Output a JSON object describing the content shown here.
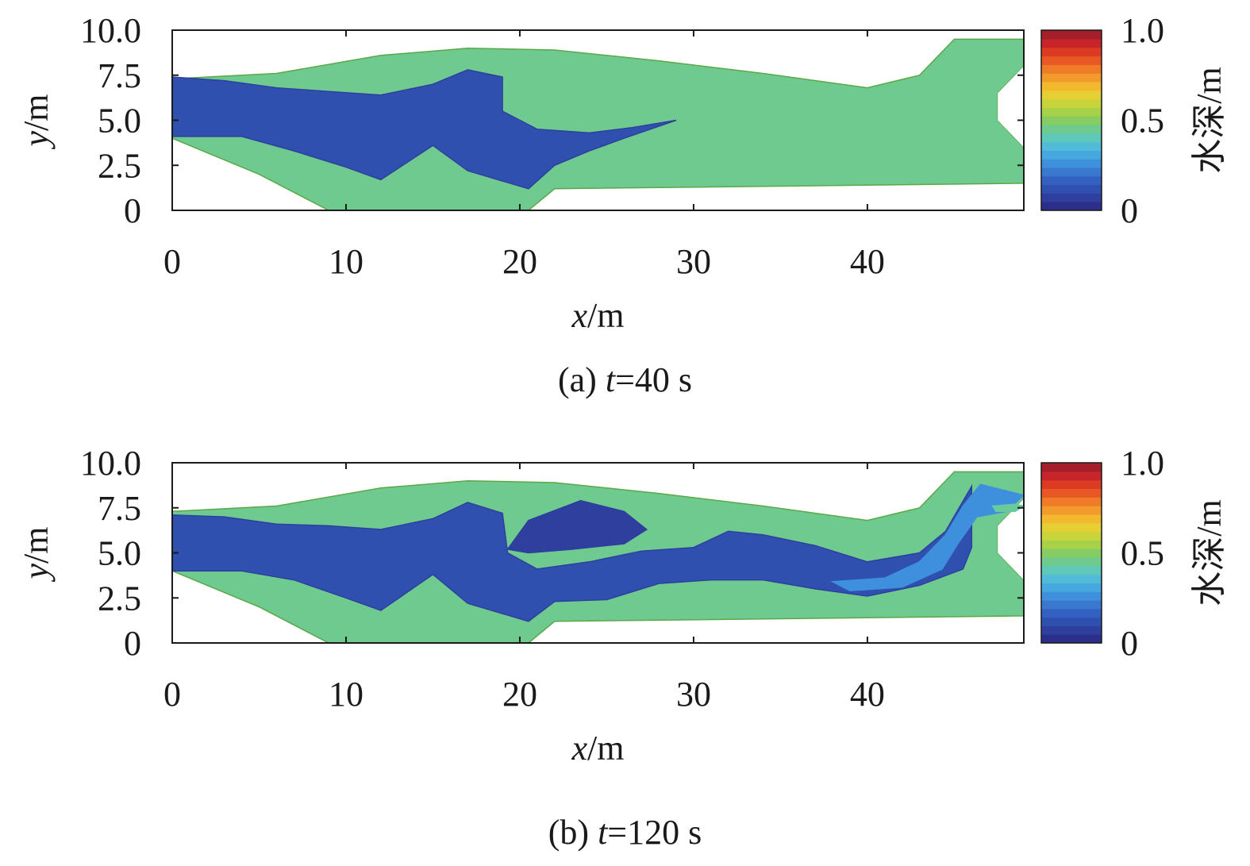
{
  "chart_data": [
    {
      "type": "heatmap",
      "caption": {
        "prefix": "(a) ",
        "var": "t",
        "rest": "=40 s"
      },
      "xlabel": {
        "var": "x",
        "unit": "/m"
      },
      "ylabel": {
        "var": "y",
        "unit": "/m"
      },
      "xlim": [
        0,
        49
      ],
      "ylim": [
        0,
        10
      ],
      "xticks": [
        "0",
        "10",
        "20",
        "30",
        "40"
      ],
      "xtick_values": [
        0,
        10,
        20,
        30,
        40
      ],
      "yticks": [
        "0",
        "2.5",
        "5.0",
        "7.5",
        "10.0"
      ],
      "ytick_values": [
        0,
        2.5,
        5,
        7.5,
        10
      ],
      "colorbar": {
        "label": "水深/m",
        "min": 0,
        "max": 1,
        "ticks": [
          "0",
          "0.5",
          "1.0"
        ],
        "tick_values": [
          0,
          0.5,
          1
        ]
      },
      "domain_depth_m": 0.45,
      "domain_outline": [
        [
          0,
          7.3
        ],
        [
          6,
          7.6
        ],
        [
          12,
          8.6
        ],
        [
          17,
          9.0
        ],
        [
          22,
          8.9
        ],
        [
          28,
          8.3
        ],
        [
          34,
          7.6
        ],
        [
          40,
          6.8
        ],
        [
          43,
          7.5
        ],
        [
          45,
          9.5
        ],
        [
          49,
          9.5
        ],
        [
          49,
          8.0
        ],
        [
          47.5,
          6.5
        ],
        [
          47.5,
          5.0
        ],
        [
          49,
          3.5
        ],
        [
          49,
          1.5
        ],
        [
          22,
          1.2
        ],
        [
          20.5,
          0
        ],
        [
          9,
          0
        ],
        [
          5,
          2.0
        ],
        [
          0,
          4.0
        ]
      ],
      "dry_regions": [
        [
          [
            47.5,
            6.5
          ],
          [
            49,
            8.0
          ],
          [
            49,
            3.5
          ],
          [
            47.5,
            5.0
          ]
        ]
      ],
      "wet_regions": [
        {
          "depth_m": 0.1,
          "polygon": [
            [
              0,
              7.4
            ],
            [
              3,
              7.2
            ],
            [
              6,
              6.8
            ],
            [
              9,
              6.6
            ],
            [
              12,
              6.4
            ],
            [
              15,
              7.0
            ],
            [
              17,
              7.8
            ],
            [
              19,
              7.4
            ],
            [
              19,
              5.5
            ],
            [
              21,
              4.5
            ],
            [
              24,
              4.3
            ],
            [
              26.5,
              4.6
            ],
            [
              29,
              5.0
            ],
            [
              26,
              4.0
            ],
            [
              24,
              3.3
            ],
            [
              22,
              2.5
            ],
            [
              20.5,
              1.2
            ],
            [
              17,
              2.2
            ],
            [
              15,
              3.6
            ],
            [
              12,
              1.7
            ],
            [
              10,
              2.4
            ],
            [
              7,
              3.3
            ],
            [
              4,
              4.1
            ],
            [
              0,
              4.1
            ]
          ]
        }
      ]
    },
    {
      "type": "heatmap",
      "caption": {
        "prefix": "(b) ",
        "var": "t",
        "rest": "=120 s"
      },
      "xlabel": {
        "var": "x",
        "unit": "/m"
      },
      "ylabel": {
        "var": "y",
        "unit": "/m"
      },
      "xlim": [
        0,
        49
      ],
      "ylim": [
        0,
        10
      ],
      "xticks": [
        "0",
        "10",
        "20",
        "30",
        "40"
      ],
      "xtick_values": [
        0,
        10,
        20,
        30,
        40
      ],
      "yticks": [
        "0",
        "2.5",
        "5.0",
        "7.5",
        "10.0"
      ],
      "ytick_values": [
        0,
        2.5,
        5,
        7.5,
        10
      ],
      "colorbar": {
        "label": "水深/m",
        "min": 0,
        "max": 1,
        "ticks": [
          "0",
          "0.5",
          "1.0"
        ],
        "tick_values": [
          0,
          0.5,
          1
        ]
      },
      "domain_depth_m": 0.45,
      "domain_outline": [
        [
          0,
          7.3
        ],
        [
          6,
          7.6
        ],
        [
          12,
          8.6
        ],
        [
          17,
          9.0
        ],
        [
          22,
          8.9
        ],
        [
          28,
          8.3
        ],
        [
          34,
          7.6
        ],
        [
          40,
          6.8
        ],
        [
          43,
          7.5
        ],
        [
          45,
          9.5
        ],
        [
          49,
          9.5
        ],
        [
          49,
          8.0
        ],
        [
          47.5,
          6.5
        ],
        [
          47.5,
          5.0
        ],
        [
          49,
          3.5
        ],
        [
          49,
          1.5
        ],
        [
          22,
          1.2
        ],
        [
          20.5,
          0
        ],
        [
          9,
          0
        ],
        [
          5,
          2.0
        ],
        [
          0,
          4.0
        ]
      ],
      "dry_regions": [
        [
          [
            47.5,
            6.5
          ],
          [
            49,
            8.0
          ],
          [
            49,
            3.5
          ],
          [
            47.5,
            5.0
          ]
        ]
      ],
      "wet_regions": [
        {
          "depth_m": 0.1,
          "polygon": [
            [
              0,
              7.1
            ],
            [
              3,
              7.0
            ],
            [
              6,
              6.6
            ],
            [
              9,
              6.5
            ],
            [
              12,
              6.3
            ],
            [
              15,
              6.9
            ],
            [
              17,
              7.8
            ],
            [
              19,
              7.2
            ],
            [
              19.3,
              5.0
            ],
            [
              21,
              4.1
            ],
            [
              24,
              4.5
            ],
            [
              27,
              5.1
            ],
            [
              30,
              5.3
            ],
            [
              32,
              6.2
            ],
            [
              34,
              6.0
            ],
            [
              37,
              5.4
            ],
            [
              40,
              4.5
            ],
            [
              43,
              5.0
            ],
            [
              44.5,
              6.2
            ],
            [
              46,
              8.7
            ],
            [
              46,
              5.3
            ],
            [
              45.5,
              4.1
            ],
            [
              43,
              3.2
            ],
            [
              40,
              2.6
            ],
            [
              37,
              3.0
            ],
            [
              34,
              3.5
            ],
            [
              31,
              3.5
            ],
            [
              28,
              3.3
            ],
            [
              25,
              2.4
            ],
            [
              22,
              2.3
            ],
            [
              20.5,
              1.2
            ],
            [
              17,
              2.2
            ],
            [
              15,
              3.8
            ],
            [
              12,
              1.8
            ],
            [
              10,
              2.5
            ],
            [
              7,
              3.5
            ],
            [
              4,
              4.0
            ],
            [
              0,
              4.0
            ]
          ]
        },
        {
          "depth_m": 0.08,
          "polygon": [
            [
              19.3,
              5.2
            ],
            [
              20.5,
              6.8
            ],
            [
              23.5,
              7.9
            ],
            [
              26,
              7.3
            ],
            [
              27.3,
              6.3
            ],
            [
              26,
              5.5
            ],
            [
              23,
              5.2
            ],
            [
              20.5,
              5.0
            ]
          ]
        },
        {
          "depth_m": 0.28,
          "polygon": [
            [
              38,
              3.4
            ],
            [
              41,
              3.6
            ],
            [
              43,
              4.5
            ],
            [
              44.5,
              6.0
            ],
            [
              45.5,
              7.6
            ],
            [
              46.5,
              8.8
            ],
            [
              49,
              8.2
            ],
            [
              48,
              7.3
            ],
            [
              46.3,
              7.0
            ],
            [
              45.2,
              5.5
            ],
            [
              44.3,
              4.1
            ],
            [
              42,
              3.1
            ],
            [
              39,
              2.9
            ]
          ]
        },
        {
          "depth_m": 0.45,
          "polygon": [
            [
              47.2,
              7.6
            ],
            [
              48.5,
              7.7
            ],
            [
              49,
              7.6
            ],
            [
              48.5,
              7.3
            ],
            [
              47.4,
              7.3
            ]
          ]
        }
      ]
    }
  ]
}
